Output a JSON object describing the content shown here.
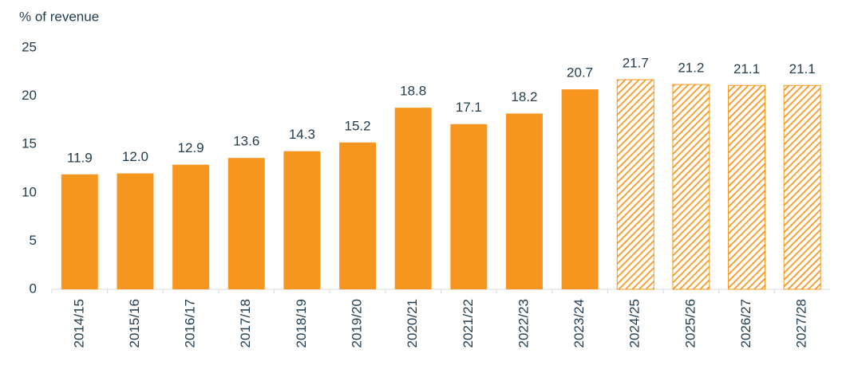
{
  "chart_data": {
    "type": "bar",
    "y_label": "% of revenue",
    "categories": [
      "2014/15",
      "2015/16",
      "2016/17",
      "2017/18",
      "2018/19",
      "2019/20",
      "2020/21",
      "2021/22",
      "2022/23",
      "2023/24",
      "2024/25",
      "2025/26",
      "2026/27",
      "2027/28"
    ],
    "values": [
      11.9,
      12.0,
      12.9,
      13.6,
      14.3,
      15.2,
      18.8,
      17.1,
      18.2,
      20.7,
      21.7,
      21.2,
      21.1,
      21.1
    ],
    "value_labels": [
      "11.9",
      "12.0",
      "12.9",
      "13.6",
      "14.3",
      "15.2",
      "18.8",
      "17.1",
      "18.2",
      "20.7",
      "21.7",
      "21.2",
      "21.1",
      "21.1"
    ],
    "hatched": [
      false,
      false,
      false,
      false,
      false,
      false,
      false,
      false,
      false,
      false,
      true,
      true,
      true,
      true
    ],
    "color": "#f7961e",
    "ylim": [
      0,
      25
    ],
    "yticks": [
      0,
      5,
      10,
      15,
      20,
      25
    ],
    "grid": false
  }
}
